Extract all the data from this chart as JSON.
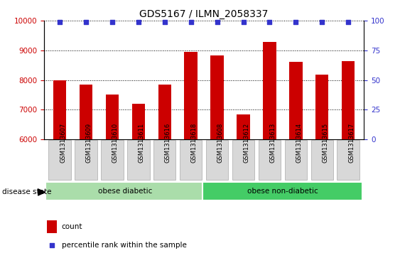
{
  "title": "GDS5167 / ILMN_2058337",
  "samples": [
    "GSM1313607",
    "GSM1313609",
    "GSM1313610",
    "GSM1313611",
    "GSM1313616",
    "GSM1313618",
    "GSM1313608",
    "GSM1313612",
    "GSM1313613",
    "GSM1313614",
    "GSM1313615",
    "GSM1313617"
  ],
  "counts": [
    8000,
    7850,
    7500,
    7200,
    7850,
    8950,
    8830,
    6850,
    9280,
    8600,
    8180,
    8630
  ],
  "percentiles": [
    99,
    99,
    99,
    99,
    99,
    99,
    99,
    99,
    99,
    99,
    99,
    99
  ],
  "bar_color": "#cc0000",
  "percentile_color": "#3333cc",
  "ylim_left": [
    6000,
    10000
  ],
  "ylim_right": [
    0,
    100
  ],
  "yticks_left": [
    6000,
    7000,
    8000,
    9000,
    10000
  ],
  "yticks_right": [
    0,
    25,
    50,
    75,
    100
  ],
  "groups": [
    {
      "label": "obese diabetic",
      "start": 0,
      "end": 6,
      "color": "#aaddaa"
    },
    {
      "label": "obese non-diabetic",
      "start": 6,
      "end": 12,
      "color": "#44cc66"
    }
  ],
  "disease_state_label": "disease state",
  "legend_count_label": "count",
  "legend_percentile_label": "percentile rank within the sample",
  "tick_label_color_left": "#cc0000",
  "tick_label_color_right": "#3333cc",
  "grid_color": "#000000",
  "title_fontsize": 10,
  "axis_fontsize": 7.5,
  "bar_width": 0.5,
  "plot_bg": "#ffffff",
  "xtick_bg": "#d8d8d8"
}
